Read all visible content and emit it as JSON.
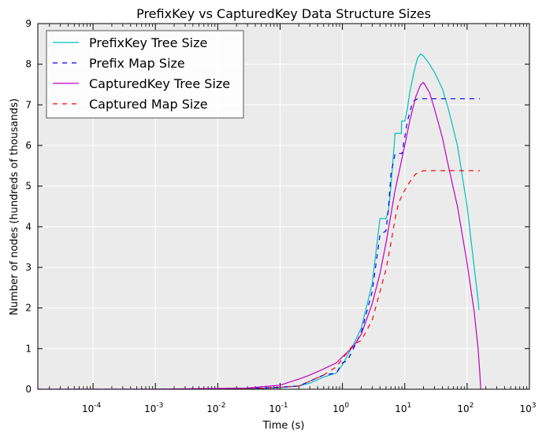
{
  "chart_data": {
    "type": "line",
    "title": "PrefixKey vs CapturedKey Data Structure Sizes",
    "xlabel": "Time (s)",
    "ylabel": "Number of nodes (hundreds of thousands)",
    "xscale": "log",
    "xlim": [
      1.3e-05,
      1000
    ],
    "ylim": [
      0,
      9
    ],
    "grid": true,
    "background": "#ebebeb",
    "legend_position": "top-left",
    "xticks": [
      {
        "value": 0.0001,
        "base": "10",
        "exp": "-4"
      },
      {
        "value": 0.001,
        "base": "10",
        "exp": "-3"
      },
      {
        "value": 0.01,
        "base": "10",
        "exp": "-2"
      },
      {
        "value": 0.1,
        "base": "10",
        "exp": "-1"
      },
      {
        "value": 1,
        "base": "10",
        "exp": "0"
      },
      {
        "value": 10,
        "base": "10",
        "exp": "1"
      },
      {
        "value": 100,
        "base": "10",
        "exp": "2"
      },
      {
        "value": 1000,
        "base": "10",
        "exp": "3"
      }
    ],
    "yticks": [
      "0",
      "1",
      "2",
      "3",
      "4",
      "5",
      "6",
      "7",
      "8",
      "9"
    ],
    "series": [
      {
        "name": "PrefixKey Tree Size",
        "color": "#00bfbf",
        "style": "solid",
        "x": [
          0.001,
          0.01,
          0.05,
          0.1,
          0.2,
          0.3,
          0.5,
          0.8,
          1.0,
          1.5,
          2.0,
          3.0,
          4.0,
          4.01,
          5.0,
          5.5,
          6.0,
          7.0,
          7.5,
          8.0,
          8.8,
          8.9,
          10,
          11,
          12,
          14,
          16,
          18,
          20,
          25,
          30,
          40,
          50,
          70,
          100,
          130,
          150,
          155
        ],
        "y": [
          0,
          0,
          0.02,
          0.04,
          0.08,
          0.15,
          0.3,
          0.4,
          0.6,
          1.1,
          1.5,
          2.6,
          4.2,
          4.2,
          4.2,
          4.4,
          5.0,
          6.3,
          6.3,
          6.3,
          6.3,
          6.6,
          6.6,
          6.9,
          7.3,
          7.8,
          8.15,
          8.25,
          8.2,
          8.0,
          7.8,
          7.4,
          6.9,
          6.0,
          4.5,
          3.0,
          2.2,
          1.95
        ]
      },
      {
        "name": "Prefix Map Size",
        "color": "#0000ff",
        "style": "dashed",
        "x": [
          1.3e-05,
          0.001,
          0.01,
          0.05,
          0.1,
          0.2,
          0.3,
          0.5,
          0.8,
          1.0,
          1.2,
          1.5,
          2.0,
          3.0,
          4.0,
          5.0,
          5.5,
          6.0,
          7.0,
          8.0,
          9.0,
          10,
          11,
          12,
          13,
          14,
          16,
          18,
          20,
          30,
          50,
          100,
          160
        ],
        "y": [
          0,
          0,
          0.02,
          0.03,
          0.05,
          0.08,
          0.2,
          0.35,
          0.4,
          0.65,
          0.7,
          1.0,
          1.4,
          2.4,
          3.8,
          3.9,
          4.5,
          5.3,
          5.8,
          5.8,
          5.8,
          6.2,
          6.6,
          6.8,
          7.0,
          7.1,
          7.15,
          7.15,
          7.15,
          7.15,
          7.15,
          7.15,
          7.15
        ]
      },
      {
        "name": "CapturedKey Tree Size",
        "color": "#bf00bf",
        "style": "solid",
        "x": [
          1.3e-05,
          0.001,
          0.01,
          0.03,
          0.05,
          0.1,
          0.2,
          0.3,
          0.5,
          0.8,
          1.0,
          1.5,
          2.0,
          3.0,
          4.0,
          5.0,
          7.0,
          10,
          12,
          15,
          18,
          20,
          25,
          30,
          40,
          50,
          70,
          100,
          130,
          150,
          160,
          165
        ],
        "y": [
          0,
          0,
          0.02,
          0.03,
          0.06,
          0.1,
          0.25,
          0.35,
          0.5,
          0.65,
          0.8,
          1.05,
          1.35,
          2.1,
          2.85,
          3.6,
          4.9,
          6.0,
          6.6,
          7.2,
          7.5,
          7.55,
          7.3,
          6.9,
          6.2,
          5.5,
          4.5,
          3.1,
          1.9,
          1.0,
          0.4,
          0.0
        ]
      },
      {
        "name": "Captured Map Size",
        "color": "#ff0000",
        "style": "dashed",
        "x": [
          0.001,
          0.01,
          0.05,
          0.1,
          0.2,
          0.3,
          0.5,
          0.8,
          1.0,
          1.5,
          2.0,
          3.0,
          4.0,
          5.0,
          6.0,
          7.0,
          8.0,
          10,
          12,
          15,
          20,
          30,
          50,
          100,
          160
        ],
        "y": [
          0,
          0,
          0.02,
          0.05,
          0.08,
          0.2,
          0.35,
          0.55,
          0.75,
          1.1,
          1.2,
          1.7,
          2.4,
          2.95,
          3.6,
          4.2,
          4.6,
          4.9,
          5.1,
          5.3,
          5.38,
          5.38,
          5.38,
          5.38,
          5.38
        ]
      }
    ]
  }
}
